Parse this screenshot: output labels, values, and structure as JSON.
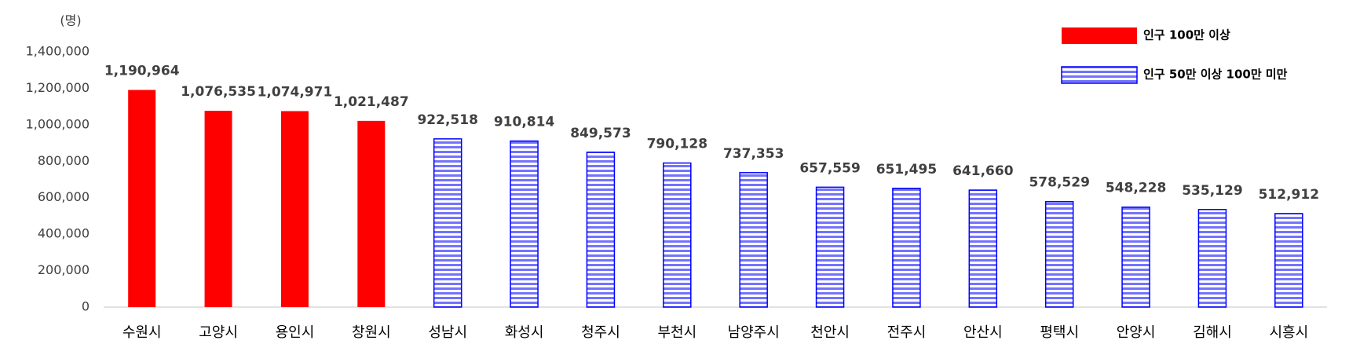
{
  "chart_data": {
    "type": "bar",
    "y_unit_label": "(명)",
    "categories": [
      "수원시",
      "고양시",
      "용인시",
      "창원시",
      "성남시",
      "화성시",
      "청주시",
      "부천시",
      "남양주시",
      "천안시",
      "전주시",
      "안산시",
      "평택시",
      "안양시",
      "김해시",
      "시흥시"
    ],
    "series": [
      {
        "name": "인구 100만 이상",
        "color": "#ff0000",
        "values": [
          1190964,
          1076535,
          1074971,
          1021487,
          null,
          null,
          null,
          null,
          null,
          null,
          null,
          null,
          null,
          null,
          null,
          null
        ],
        "value_labels": [
          "1,190,964",
          "1,076,535",
          "1,074,971",
          "1,021,487",
          null,
          null,
          null,
          null,
          null,
          null,
          null,
          null,
          null,
          null,
          null,
          null
        ]
      },
      {
        "name": "인구 50만 이상 100만 미만",
        "color": "#0000ff",
        "values": [
          null,
          null,
          null,
          null,
          922518,
          910814,
          849573,
          790128,
          737353,
          657559,
          651495,
          641660,
          578529,
          548228,
          535129,
          512912
        ],
        "value_labels": [
          null,
          null,
          null,
          null,
          "922,518",
          "910,814",
          "849,573",
          "790,128",
          "737,353",
          "657,559",
          "651,495",
          "641,660",
          "578,529",
          "548,228",
          "535,129",
          "512,912"
        ]
      }
    ],
    "ylim": [
      0,
      1400000
    ],
    "yticks": [
      0,
      {
        "value": 200000,
        "label": "200,000"
      },
      {
        "value": 400000,
        "label": "400,000"
      },
      {
        "value": 600000,
        "label": "600,000"
      },
      {
        "value": 800000,
        "label": "800,000"
      },
      {
        "value": 1000000,
        "label": "1,000,000"
      },
      {
        "value": 1200000,
        "label": "1,200,000"
      },
      {
        "value": 1400000,
        "label": "1,400,000"
      }
    ],
    "grid": false,
    "legend": "top-right"
  }
}
